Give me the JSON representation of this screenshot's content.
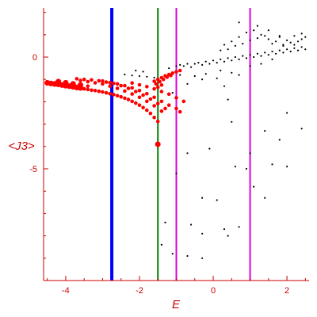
{
  "chart_data": {
    "type": "scatter",
    "title": "",
    "xlabel": "E",
    "ylabel": "<J3>",
    "xlim": [
      -4.6,
      2.6
    ],
    "ylim": [
      -10,
      2.2
    ],
    "x_ticks": [
      -4,
      -2,
      0,
      2
    ],
    "y_ticks": [
      0,
      -5
    ],
    "grid": false,
    "colors": {
      "axis": "#cc0000",
      "red_points": "#ff0000",
      "black_points": "#000000",
      "line_blue": "#0000ff",
      "line_green": "#008000",
      "line_magenta": "#dd00dd"
    },
    "vertical_lines": [
      {
        "x": -2.75,
        "color": "#0000ff",
        "width": 4
      },
      {
        "x": -1.5,
        "color": "#008000",
        "width": 2
      },
      {
        "x": -1.0,
        "color": "#dd00dd",
        "width": 2
      },
      {
        "x": 1.0,
        "color": "#dd00dd",
        "width": 2
      }
    ],
    "series": [
      {
        "color": "#ff0000",
        "points": [
          [
            -4.5,
            -1.15
          ],
          [
            -4.4,
            -1.18
          ],
          [
            -4.3,
            -1.2
          ],
          [
            -4.2,
            -1.22
          ],
          [
            -4.1,
            -1.25
          ],
          [
            -4.0,
            -1.28
          ],
          [
            -3.9,
            -1.3
          ],
          [
            -3.8,
            -1.33
          ],
          [
            -3.7,
            -1.36
          ],
          [
            -3.6,
            -1.38
          ],
          [
            -3.5,
            -1.42
          ],
          [
            -3.4,
            -1.45
          ],
          [
            -3.3,
            -1.48
          ],
          [
            -3.2,
            -1.5
          ],
          [
            -3.1,
            -1.53
          ],
          [
            -3.0,
            -1.56
          ],
          [
            -2.9,
            -1.6
          ],
          [
            -2.8,
            -1.64
          ],
          [
            -2.7,
            -1.68
          ],
          [
            -2.6,
            -1.73
          ],
          [
            -2.5,
            -1.78
          ],
          [
            -2.4,
            -1.84
          ],
          [
            -2.3,
            -1.9
          ],
          [
            -2.2,
            -1.98
          ],
          [
            -2.1,
            -2.06
          ],
          [
            -2.0,
            -2.15
          ],
          [
            -1.9,
            -2.26
          ],
          [
            -1.8,
            -2.38
          ],
          [
            -1.7,
            -2.52
          ],
          [
            -1.6,
            -2.7
          ],
          [
            -1.5,
            -2.88
          ],
          [
            -4.2,
            -1.1
          ],
          [
            -4.0,
            -1.15
          ],
          [
            -3.8,
            -1.2
          ],
          [
            -3.6,
            -1.25
          ],
          [
            -3.4,
            -1.3
          ],
          [
            -3.6,
            -1.05
          ],
          [
            -3.4,
            -1.1
          ],
          [
            -3.2,
            -1.15
          ],
          [
            -3.0,
            -1.2
          ],
          [
            -2.8,
            -1.3
          ],
          [
            -2.6,
            -1.4
          ],
          [
            -2.4,
            -1.52
          ],
          [
            -2.2,
            -1.65
          ],
          [
            -2.0,
            -1.8
          ],
          [
            -1.8,
            -1.98
          ],
          [
            -1.6,
            -2.18
          ],
          [
            -1.4,
            -2.42
          ],
          [
            -3.7,
            -0.97
          ],
          [
            -3.5,
            -1.0
          ],
          [
            -3.3,
            -1.02
          ],
          [
            -3.1,
            -1.06
          ],
          [
            -2.9,
            -1.12
          ],
          [
            -2.7,
            -1.18
          ],
          [
            -2.5,
            -1.28
          ],
          [
            -2.3,
            -1.4
          ],
          [
            -2.1,
            -1.54
          ],
          [
            -1.9,
            -1.7
          ],
          [
            -1.7,
            -1.88
          ],
          [
            -1.5,
            -2.08
          ],
          [
            -1.3,
            -2.3
          ],
          [
            -3.0,
            -1.07
          ],
          [
            -2.8,
            -1.14
          ],
          [
            -2.6,
            -1.2
          ],
          [
            -2.4,
            -1.28
          ],
          [
            -2.2,
            -1.38
          ],
          [
            -2.0,
            -1.5
          ],
          [
            -1.8,
            -1.64
          ],
          [
            -1.6,
            -1.8
          ],
          [
            -1.4,
            -1.98
          ],
          [
            -1.2,
            -2.15
          ],
          [
            -1.0,
            -2.3
          ],
          [
            -0.9,
            -2.45
          ],
          [
            -2.2,
            -1.16
          ],
          [
            -2.0,
            -1.24
          ],
          [
            -1.8,
            -1.32
          ],
          [
            -1.6,
            -1.42
          ],
          [
            -1.4,
            -1.54
          ],
          [
            -1.2,
            -1.66
          ],
          [
            -1.0,
            -1.82
          ],
          [
            -0.8,
            -1.98
          ],
          [
            -1.6,
            -1.08
          ],
          [
            -1.5,
            -1.0
          ],
          [
            -1.4,
            -0.92
          ],
          [
            -1.3,
            -0.84
          ],
          [
            -1.2,
            -0.78
          ],
          [
            -1.1,
            -0.72
          ],
          [
            -1.0,
            -0.66
          ],
          [
            -0.9,
            -0.6
          ],
          [
            -1.55,
            -1.2
          ],
          [
            -1.45,
            -1.1
          ],
          [
            -1.35,
            -1.0
          ],
          [
            -1.25,
            -0.9
          ],
          [
            -1.15,
            -0.82
          ],
          [
            -1.5,
            -1.35
          ],
          [
            -1.4,
            -1.25
          ],
          [
            -1.5,
            -3.9
          ]
        ]
      },
      {
        "color": "#000000",
        "points": [
          [
            -2.4,
            -0.78
          ],
          [
            -2.2,
            -0.82
          ],
          [
            -2.0,
            -0.85
          ],
          [
            -1.8,
            -0.88
          ],
          [
            -1.6,
            -0.92
          ],
          [
            -2.1,
            -0.6
          ],
          [
            -1.9,
            -0.65
          ],
          [
            -1.2,
            -0.5
          ],
          [
            -1.0,
            -0.4
          ],
          [
            -0.9,
            -0.35
          ],
          [
            -0.8,
            -0.4
          ],
          [
            -0.7,
            -0.3
          ],
          [
            -0.6,
            -0.45
          ],
          [
            -0.5,
            -0.3
          ],
          [
            -0.4,
            -0.25
          ],
          [
            -0.3,
            -0.35
          ],
          [
            -0.2,
            -0.2
          ],
          [
            -0.1,
            -0.3
          ],
          [
            0.0,
            -0.15
          ],
          [
            0.1,
            -0.25
          ],
          [
            0.2,
            -0.1
          ],
          [
            0.3,
            -0.2
          ],
          [
            0.4,
            -0.05
          ],
          [
            0.5,
            -0.15
          ],
          [
            0.6,
            0.0
          ],
          [
            0.7,
            -0.1
          ],
          [
            0.8,
            0.05
          ],
          [
            0.9,
            -0.05
          ],
          [
            1.0,
            0.1
          ],
          [
            1.1,
            0.0
          ],
          [
            1.2,
            0.15
          ],
          [
            1.3,
            0.05
          ],
          [
            1.4,
            0.2
          ],
          [
            1.5,
            0.1
          ],
          [
            1.6,
            0.25
          ],
          [
            1.7,
            0.15
          ],
          [
            1.8,
            0.3
          ],
          [
            1.9,
            0.2
          ],
          [
            2.0,
            0.35
          ],
          [
            2.1,
            0.25
          ],
          [
            2.2,
            0.4
          ],
          [
            2.3,
            0.3
          ],
          [
            2.4,
            0.45
          ],
          [
            2.5,
            0.35
          ],
          [
            0.2,
            0.3
          ],
          [
            0.4,
            0.35
          ],
          [
            0.6,
            0.5
          ],
          [
            0.8,
            0.6
          ],
          [
            1.0,
            0.75
          ],
          [
            1.2,
            0.85
          ],
          [
            1.4,
            0.95
          ],
          [
            1.6,
            0.6
          ],
          [
            1.8,
            0.9
          ],
          [
            2.0,
            0.75
          ],
          [
            2.2,
            0.55
          ],
          [
            2.4,
            0.8
          ],
          [
            0.7,
            0.9
          ],
          [
            0.9,
            1.1
          ],
          [
            1.1,
            1.2
          ],
          [
            1.3,
            1.0
          ],
          [
            0.5,
            0.7
          ],
          [
            0.3,
            0.55
          ],
          [
            1.5,
            0.8
          ],
          [
            1.7,
            0.7
          ],
          [
            1.9,
            0.5
          ],
          [
            2.1,
            0.65
          ],
          [
            2.3,
            0.7
          ],
          [
            2.5,
            0.9
          ],
          [
            0.7,
            1.55
          ],
          [
            1.2,
            1.4
          ],
          [
            1.5,
            1.2
          ],
          [
            1.8,
            0.95
          ],
          [
            2.4,
            1.05
          ],
          [
            1.9,
            0.55
          ],
          [
            2.2,
            0.95
          ],
          [
            0.2,
            -0.6
          ],
          [
            0.5,
            -0.7
          ],
          [
            0.1,
            -0.95
          ],
          [
            0.7,
            -0.8
          ],
          [
            -0.5,
            -0.85
          ],
          [
            -0.2,
            -0.75
          ],
          [
            1.0,
            -0.4
          ],
          [
            1.3,
            -0.3
          ],
          [
            1.6,
            -0.1
          ],
          [
            -0.9,
            -0.8
          ],
          [
            -0.7,
            -1.2
          ],
          [
            -1.1,
            -1.6
          ],
          [
            0.4,
            -1.9
          ],
          [
            0.3,
            -1.3
          ],
          [
            -0.3,
            -1.0
          ],
          [
            0.5,
            -2.9
          ],
          [
            1.4,
            -3.3
          ],
          [
            2.0,
            -2.5
          ],
          [
            1.8,
            -3.7
          ],
          [
            2.4,
            -3.2
          ],
          [
            1.0,
            -4.3
          ],
          [
            -0.7,
            -4.3
          ],
          [
            -0.1,
            -4.1
          ],
          [
            0.6,
            -4.9
          ],
          [
            0.9,
            -5.0
          ],
          [
            1.6,
            -4.8
          ],
          [
            2.0,
            -4.9
          ],
          [
            -1.0,
            -5.2
          ],
          [
            -0.3,
            -6.3
          ],
          [
            0.1,
            -6.4
          ],
          [
            1.1,
            -5.8
          ],
          [
            1.4,
            -6.3
          ],
          [
            -0.6,
            -7.5
          ],
          [
            -1.3,
            -7.4
          ],
          [
            0.3,
            -7.7
          ],
          [
            0.7,
            -7.6
          ],
          [
            -0.3,
            -7.9
          ],
          [
            0.4,
            -8.0
          ],
          [
            -1.1,
            -8.8
          ],
          [
            -0.7,
            -8.9
          ],
          [
            -0.3,
            -9.0
          ],
          [
            -1.4,
            -8.4
          ]
        ]
      }
    ]
  }
}
